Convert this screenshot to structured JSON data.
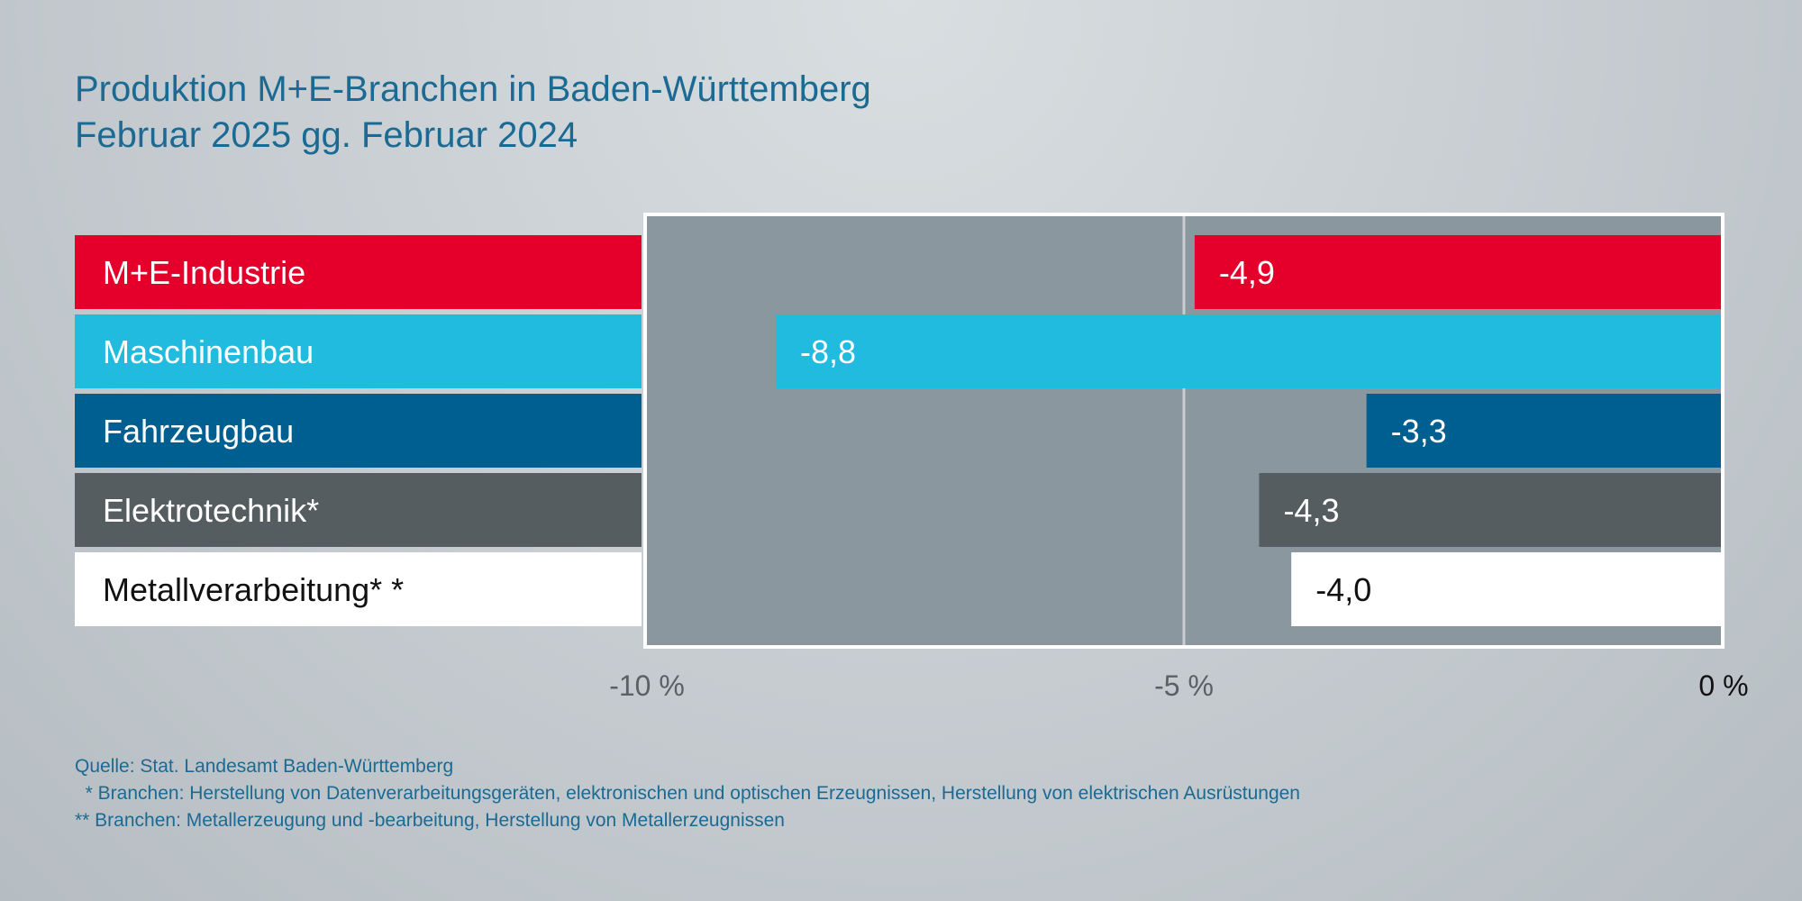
{
  "title": {
    "line1": "Produktion M+E-Branchen in Baden-Württemberg",
    "line2": "Februar 2025 gg. Februar 2024"
  },
  "chart_data": {
    "type": "bar",
    "orientation": "horizontal",
    "categories": [
      "M+E-Industrie",
      "Maschinenbau",
      "Fahrzeugbau",
      "Elektrotechnik*",
      "Metallverarbeitung**"
    ],
    "category_display": [
      "M+E-Industrie",
      "Maschinenbau",
      "Fahrzeugbau",
      "Elektrotechnik*",
      "Metallverarbeitung* *"
    ],
    "values": [
      -4.9,
      -8.8,
      -3.3,
      -4.3,
      -4.0
    ],
    "value_labels": [
      "-4,9",
      "-8,8",
      "-3,3",
      "-4,3",
      "-4,0"
    ],
    "colors": [
      "#e4002b",
      "#22bbe0",
      "#005f91",
      "#565d60",
      "#ffffff"
    ],
    "text_colors": [
      "#ffffff",
      "#ffffff",
      "#ffffff",
      "#ffffff",
      "#111111"
    ],
    "xlim": [
      -10,
      0
    ],
    "gridlines": [
      -5
    ],
    "ticks": [
      -10,
      -5,
      0
    ],
    "tick_labels": [
      "-10 %",
      "-5 %",
      "0 %"
    ],
    "tick_colors": [
      "#5b6064",
      "#5b6064",
      "#111111"
    ],
    "plot_background": "#8a979e",
    "title": "Produktion M+E-Branchen in Baden-Württemberg – Februar 2025 gg. Februar 2024",
    "xlabel": "",
    "ylabel": ""
  },
  "footer": {
    "source": "Quelle: Stat. Landesamt Baden-Württemberg",
    "note1": "  * Branchen: Herstellung von Datenverarbeitungsgeräten, elektronischen und optischen Erzeugnissen, Herstellung von elektrischen Ausrüstungen",
    "note2": "** Branchen: Metallerzeugung und -bearbeitung, Herstellung von Metallerzeugnissen"
  }
}
